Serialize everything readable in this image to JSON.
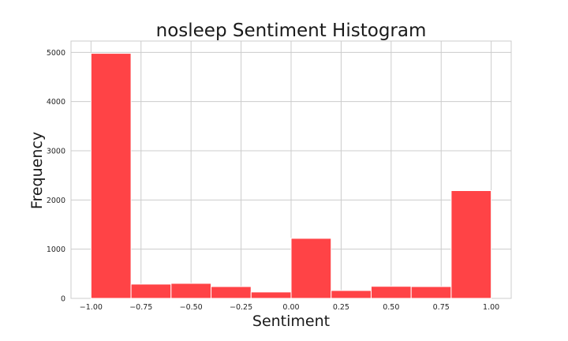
{
  "chart_data": {
    "type": "bar",
    "subtype": "histogram",
    "title": "nosleep Sentiment Histogram",
    "xlabel": "Sentiment",
    "ylabel": "Frequency",
    "bin_edges": [
      -1.0,
      -0.8,
      -0.6,
      -0.4,
      -0.2,
      0.0,
      0.2,
      0.4,
      0.6,
      0.8,
      1.0
    ],
    "values": [
      4980,
      290,
      305,
      240,
      130,
      1220,
      160,
      245,
      240,
      2190
    ],
    "xlim": [
      -1.1,
      1.1
    ],
    "ylim": [
      0,
      5230
    ],
    "x_ticks": [
      -1.0,
      -0.75,
      -0.5,
      -0.25,
      0.0,
      0.25,
      0.5,
      0.75,
      1.0
    ],
    "x_tick_labels": [
      "−1.00",
      "−0.75",
      "−0.50",
      "−0.25",
      "0.00",
      "0.25",
      "0.50",
      "0.75",
      "1.00"
    ],
    "y_ticks": [
      0,
      1000,
      2000,
      3000,
      4000,
      5000
    ],
    "y_tick_labels": [
      "0",
      "1000",
      "2000",
      "3000",
      "4000",
      "5000"
    ],
    "grid": true,
    "bar_color": "#ff4346"
  }
}
